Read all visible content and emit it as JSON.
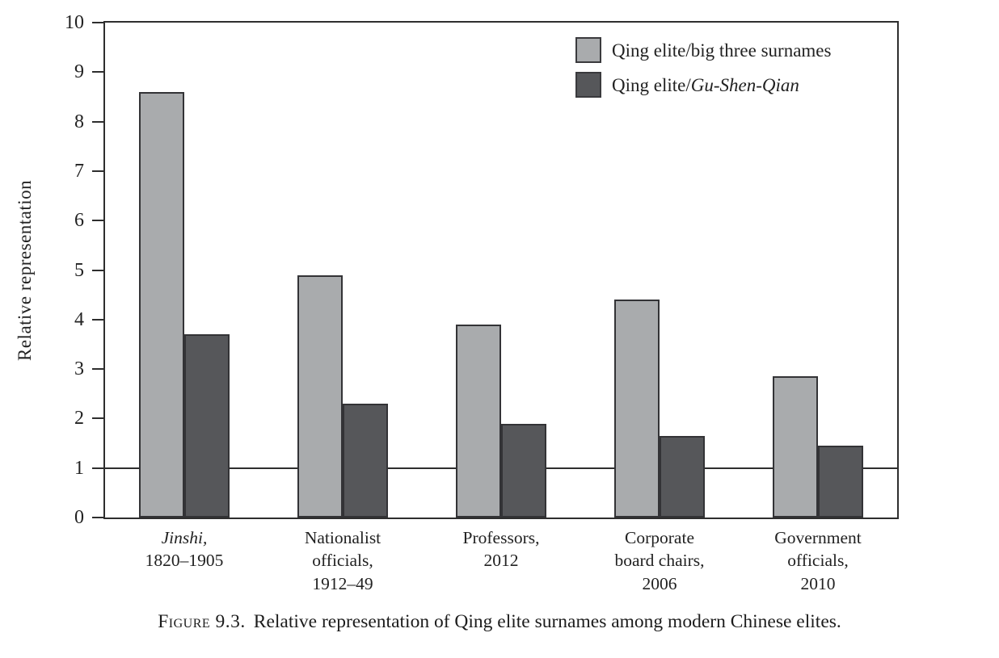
{
  "figure": {
    "caption_label": "Figure 9.3.",
    "caption_text": "Relative representation of Qing elite surnames among modern Chinese elites."
  },
  "colors": {
    "series_light": "#a9abad",
    "series_dark": "#56575a",
    "axis": "#2e2e2e",
    "bar_border": "#333336",
    "text": "#1c1c1c",
    "background": "#ffffff"
  },
  "chart_data": {
    "type": "bar",
    "title": "",
    "xlabel": "",
    "ylabel": "Relative representation",
    "ylim": [
      0,
      10
    ],
    "yticks": [
      0,
      1,
      2,
      3,
      4,
      5,
      6,
      7,
      8,
      9,
      10
    ],
    "reference_line_y": 1,
    "grid": false,
    "legend_position": "top-right",
    "categories": [
      {
        "lines": [
          {
            "text": "Jinshi,",
            "italic": true
          },
          {
            "text": "1820–1905",
            "italic": false
          }
        ]
      },
      {
        "lines": [
          {
            "text": "Nationalist",
            "italic": false
          },
          {
            "text": "officials,",
            "italic": false
          },
          {
            "text": "1912–49",
            "italic": false
          }
        ]
      },
      {
        "lines": [
          {
            "text": "Professors,",
            "italic": false
          },
          {
            "text": "2012",
            "italic": false
          }
        ]
      },
      {
        "lines": [
          {
            "text": "Corporate",
            "italic": false
          },
          {
            "text": "board chairs,",
            "italic": false
          },
          {
            "text": "2006",
            "italic": false
          }
        ]
      },
      {
        "lines": [
          {
            "text": "Government",
            "italic": false
          },
          {
            "text": "officials,",
            "italic": false
          },
          {
            "text": "2010",
            "italic": false
          }
        ]
      }
    ],
    "series": [
      {
        "name": "Qing elite/big three surnames",
        "name_plain": "Qing elite/big three surnames",
        "name_italic_part": "",
        "color": "#a9abad",
        "values": [
          8.6,
          4.9,
          3.9,
          4.4,
          2.85
        ]
      },
      {
        "name": "Qing elite/Gu-Shen-Qian",
        "name_plain": "Qing elite/",
        "name_italic_part": "Gu-Shen-Qian",
        "color": "#56575a",
        "values": [
          3.7,
          2.3,
          1.9,
          1.65,
          1.45
        ]
      }
    ]
  }
}
